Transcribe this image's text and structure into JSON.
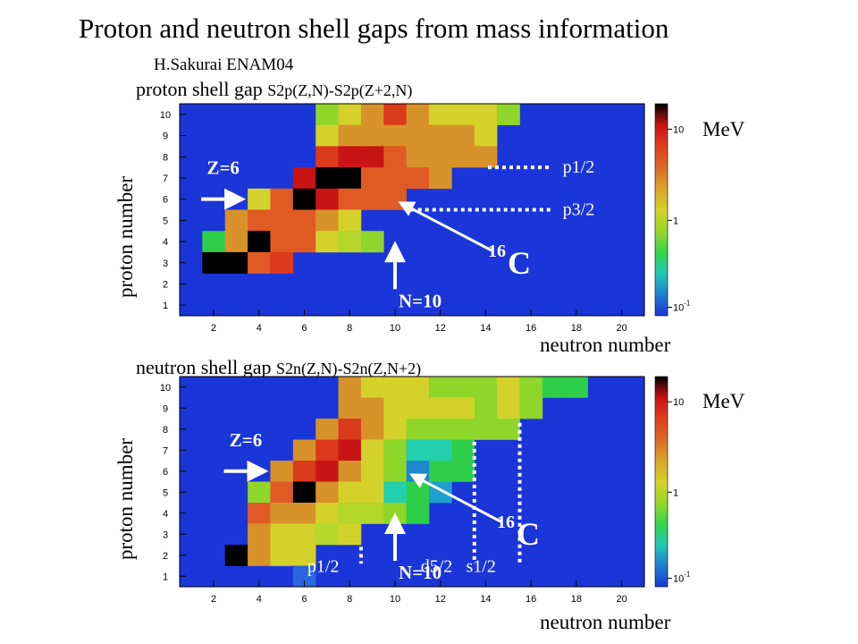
{
  "title": "Proton and neutron shell gaps from mass information",
  "credit": "H.Sakurai ENAM04",
  "colors": {
    "background": "#1a35d8",
    "scale": [
      "#1a35d8",
      "#1f7fd0",
      "#22c9b5",
      "#35d64a",
      "#9bd62a",
      "#d4d22a",
      "#d8a42a",
      "#dc6a28",
      "#e0401e",
      "#c81414",
      "#000000"
    ]
  },
  "chart_data": [
    {
      "type": "heatmap",
      "title": "proton shell gap",
      "formula": "S2p(Z,N)-S2p(Z+2,N)",
      "xlabel": "neutron number",
      "ylabel": "proton number",
      "xlim": [
        0.5,
        21
      ],
      "ylim": [
        0.5,
        10.5
      ],
      "xticks": [
        2,
        4,
        6,
        8,
        10,
        12,
        14,
        16,
        18,
        20
      ],
      "yticks": [
        1,
        2,
        3,
        4,
        5,
        6,
        7,
        8,
        9,
        10
      ],
      "colorbar": {
        "label": "MeV",
        "scale": "log",
        "ticks": [
          "10",
          "1",
          "10^-1"
        ]
      },
      "cells": [
        {
          "z": 10,
          "n": [
            [
              7,
              "lime"
            ],
            [
              8,
              "yellow"
            ],
            [
              9,
              "orange"
            ],
            [
              10,
              "red-orange"
            ],
            [
              11,
              "orange"
            ],
            [
              12,
              "yellow"
            ],
            [
              13,
              "yellow"
            ],
            [
              14,
              "yellow"
            ],
            [
              15,
              "lime"
            ]
          ]
        },
        {
          "z": 9,
          "n": [
            [
              7,
              "yellow"
            ],
            [
              8,
              "orange"
            ],
            [
              9,
              "orange"
            ],
            [
              10,
              "orange"
            ],
            [
              11,
              "orange"
            ],
            [
              12,
              "orange"
            ],
            [
              13,
              "orange"
            ],
            [
              14,
              "yellow"
            ]
          ]
        },
        {
          "z": 8,
          "n": [
            [
              7,
              "red-orange"
            ],
            [
              8,
              "red"
            ],
            [
              9,
              "red"
            ],
            [
              10,
              "orange-red"
            ],
            [
              11,
              "orange"
            ],
            [
              12,
              "orange"
            ],
            [
              13,
              "orange"
            ],
            [
              14,
              "orange"
            ]
          ]
        },
        {
          "z": 7,
          "n": [
            [
              6,
              "red"
            ],
            [
              7,
              "black"
            ],
            [
              8,
              "black"
            ],
            [
              9,
              "orange-red"
            ],
            [
              10,
              "orange-red"
            ],
            [
              11,
              "orange-red"
            ],
            [
              12,
              "orange"
            ]
          ]
        },
        {
          "z": 6,
          "n": [
            [
              4,
              "yellow"
            ],
            [
              5,
              "orange-red"
            ],
            [
              6,
              "black"
            ],
            [
              7,
              "red"
            ],
            [
              8,
              "orange-red"
            ],
            [
              9,
              "orange-red"
            ],
            [
              10,
              "orange-red"
            ]
          ]
        },
        {
          "z": 5,
          "n": [
            [
              3,
              "orange"
            ],
            [
              4,
              "orange-red"
            ],
            [
              5,
              "orange-red"
            ],
            [
              6,
              "orange-red"
            ],
            [
              7,
              "orange"
            ],
            [
              8,
              "yellow"
            ]
          ]
        },
        {
          "z": 4,
          "n": [
            [
              2,
              "green"
            ],
            [
              3,
              "orange"
            ],
            [
              4,
              "black"
            ],
            [
              5,
              "orange-red"
            ],
            [
              6,
              "orange-red"
            ],
            [
              7,
              "yellow"
            ],
            [
              8,
              "yellow-green"
            ],
            [
              9,
              "lime"
            ]
          ]
        },
        {
          "z": 3,
          "n": [
            [
              2,
              "black"
            ],
            [
              3,
              "black"
            ],
            [
              4,
              "orange-red"
            ],
            [
              5,
              "red-orange"
            ]
          ]
        }
      ],
      "annotations": [
        {
          "text": "Z=6",
          "kind": "arrow-right",
          "target": [
            3.5,
            6
          ]
        },
        {
          "text": "N=10",
          "kind": "arrow-up",
          "target": [
            10,
            4.2
          ]
        },
        {
          "text": "16",
          "kind": "superscript",
          "of": "C"
        },
        {
          "text": "C",
          "kind": "diagonal-arrow",
          "target": [
            10,
            6
          ]
        },
        {
          "text": "p1/2",
          "kind": "dotted-h",
          "z": 7.5
        },
        {
          "text": "p3/2",
          "kind": "dotted-h",
          "z": 5.5
        }
      ]
    },
    {
      "type": "heatmap",
      "title": "neutron shell gap",
      "formula": "S2n(Z,N)-S2n(Z,N+2)",
      "xlabel": "neutron number",
      "ylabel": "proton number",
      "xlim": [
        0.5,
        21
      ],
      "ylim": [
        0.5,
        10.5
      ],
      "xticks": [
        2,
        4,
        6,
        8,
        10,
        12,
        14,
        16,
        18,
        20
      ],
      "yticks": [
        1,
        2,
        3,
        4,
        5,
        6,
        7,
        8,
        9,
        10
      ],
      "colorbar": {
        "label": "MeV",
        "scale": "log",
        "ticks": [
          "10",
          "1",
          "10^-1"
        ]
      },
      "cells": [
        {
          "z": 10,
          "n": [
            [
              8,
              "orange"
            ],
            [
              9,
              "yellow"
            ],
            [
              10,
              "yellow"
            ],
            [
              11,
              "yellow"
            ],
            [
              12,
              "lime"
            ],
            [
              13,
              "lime"
            ],
            [
              14,
              "lime"
            ],
            [
              15,
              "yellow"
            ],
            [
              16,
              "lime"
            ],
            [
              17,
              "green"
            ],
            [
              18,
              "green"
            ]
          ]
        },
        {
          "z": 9,
          "n": [
            [
              8,
              "orange"
            ],
            [
              9,
              "orange"
            ],
            [
              10,
              "yellow"
            ],
            [
              11,
              "yellow"
            ],
            [
              12,
              "yellow"
            ],
            [
              13,
              "yellow"
            ],
            [
              14,
              "lime"
            ],
            [
              15,
              "yellow"
            ],
            [
              16,
              "lime"
            ]
          ]
        },
        {
          "z": 8,
          "n": [
            [
              7,
              "orange"
            ],
            [
              8,
              "red-orange"
            ],
            [
              9,
              "orange"
            ],
            [
              10,
              "yellow"
            ],
            [
              11,
              "lime"
            ],
            [
              12,
              "lime"
            ],
            [
              13,
              "lime"
            ],
            [
              14,
              "lime"
            ],
            [
              15,
              "lime"
            ]
          ]
        },
        {
          "z": 7,
          "n": [
            [
              6,
              "orange"
            ],
            [
              7,
              "red-orange"
            ],
            [
              8,
              "red"
            ],
            [
              9,
              "yellow"
            ],
            [
              10,
              "lime"
            ],
            [
              11,
              "teal"
            ],
            [
              12,
              "teal"
            ],
            [
              13,
              "green"
            ]
          ]
        },
        {
          "z": 6,
          "n": [
            [
              5,
              "orange"
            ],
            [
              6,
              "red-orange"
            ],
            [
              7,
              "red"
            ],
            [
              8,
              "orange"
            ],
            [
              9,
              "yellow"
            ],
            [
              10,
              "lime"
            ],
            [
              11,
              "blue-teal"
            ],
            [
              12,
              "green"
            ],
            [
              13,
              "green"
            ]
          ]
        },
        {
          "z": 5,
          "n": [
            [
              4,
              "lime"
            ],
            [
              5,
              "orange-red"
            ],
            [
              6,
              "black"
            ],
            [
              7,
              "orange"
            ],
            [
              8,
              "yellow"
            ],
            [
              9,
              "yellow"
            ],
            [
              10,
              "teal"
            ],
            [
              11,
              "green"
            ],
            [
              12,
              "teal-blue"
            ]
          ]
        },
        {
          "z": 4,
          "n": [
            [
              4,
              "orange-red"
            ],
            [
              5,
              "orange"
            ],
            [
              6,
              "orange"
            ],
            [
              7,
              "yellow"
            ],
            [
              8,
              "yellow-green"
            ],
            [
              9,
              "yellow-green"
            ],
            [
              10,
              "lime"
            ],
            [
              11,
              "green"
            ]
          ]
        },
        {
          "z": 3,
          "n": [
            [
              4,
              "orange"
            ],
            [
              5,
              "yellow"
            ],
            [
              6,
              "yellow"
            ],
            [
              7,
              "yellow-green"
            ],
            [
              8,
              "yellow"
            ]
          ]
        },
        {
          "z": 2,
          "n": [
            [
              3,
              "black"
            ],
            [
              4,
              "orange"
            ],
            [
              5,
              "yellow"
            ],
            [
              6,
              "yellow"
            ]
          ]
        },
        {
          "z": 1,
          "n": [
            [
              6,
              "light-blue"
            ]
          ]
        }
      ],
      "annotations": [
        {
          "text": "Z=6",
          "kind": "arrow-right",
          "target": [
            4.5,
            6
          ]
        },
        {
          "text": "N=10",
          "kind": "arrow-up",
          "target": [
            10,
            4.2
          ]
        },
        {
          "text": "16",
          "kind": "superscript",
          "of": "C"
        },
        {
          "text": "C",
          "kind": "diagonal-arrow",
          "target": [
            10.5,
            6
          ]
        },
        {
          "text": "p1/2",
          "kind": "dotted-v",
          "n": 9
        },
        {
          "text": "d5/2",
          "kind": "dotted-v",
          "n": 14
        },
        {
          "text": "s1/2",
          "kind": "dotted-v",
          "n": 16
        }
      ]
    }
  ],
  "palette_names": {
    "black": "#000000",
    "red": "#c81414",
    "red-orange": "#dc3a1c",
    "orange-red": "#e05a24",
    "orange": "#d8922a",
    "yellow": "#d4d22a",
    "yellow-green": "#b5d62a",
    "lime": "#8fd62a",
    "green": "#2ecf48",
    "teal": "#22cfae",
    "blue-teal": "#1f86d0",
    "teal-blue": "#1f9fd0",
    "light-blue": "#2a66e0"
  }
}
